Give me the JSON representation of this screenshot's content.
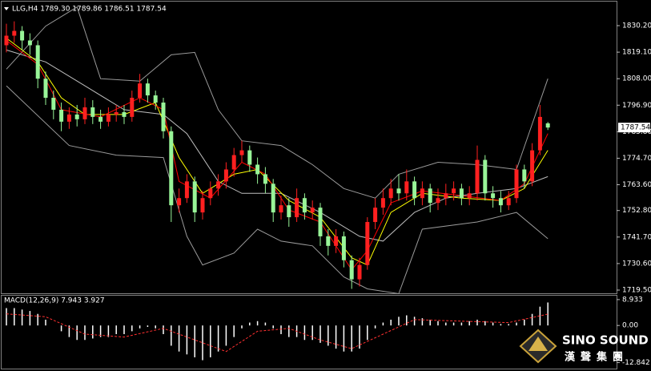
{
  "chart_data": [
    {
      "type": "candlestick",
      "title": "LLG,H4 1789.30 1789.86 1786.51 1787.54",
      "open": [
        1822,
        1826,
        1828,
        1824,
        1822,
        1808,
        1800,
        1795,
        1790,
        1793,
        1791,
        1796,
        1792,
        1790,
        1793,
        1794,
        1792,
        1800,
        1806,
        1801,
        1798,
        1786,
        1755,
        1758,
        1765,
        1752,
        1758,
        1762,
        1765,
        1770,
        1776,
        1778,
        1772,
        1768,
        1764,
        1752,
        1755,
        1750,
        1758,
        1752,
        1754,
        1742,
        1738,
        1742,
        1732,
        1724,
        1730,
        1748,
        1754,
        1758,
        1762,
        1760,
        1765,
        1758,
        1762,
        1756,
        1758,
        1760,
        1762,
        1758,
        1760,
        1774,
        1760,
        1758,
        1755,
        1758,
        1770,
        1765,
        1778,
        1789.3
      ],
      "high": [
        1831,
        1832,
        1830,
        1827,
        1824,
        1811,
        1803,
        1798,
        1796,
        1797,
        1800,
        1799,
        1795,
        1796,
        1797,
        1797,
        1803,
        1810,
        1808,
        1803,
        1800,
        1788,
        1762,
        1768,
        1767,
        1761,
        1765,
        1768,
        1773,
        1779,
        1782,
        1780,
        1775,
        1771,
        1766,
        1759,
        1758,
        1762,
        1760,
        1757,
        1756,
        1745,
        1745,
        1744,
        1734,
        1733,
        1750,
        1758,
        1762,
        1766,
        1768,
        1770,
        1767,
        1765,
        1764,
        1762,
        1764,
        1765,
        1764,
        1763,
        1780,
        1776,
        1763,
        1761,
        1761,
        1772,
        1772,
        1781,
        1797,
        1789.86
      ],
      "low": [
        1819,
        1823,
        1820,
        1818,
        1804,
        1797,
        1791,
        1786,
        1787,
        1788,
        1789,
        1789,
        1787,
        1788,
        1790,
        1789,
        1790,
        1798,
        1798,
        1795,
        1783,
        1748,
        1752,
        1756,
        1748,
        1749,
        1755,
        1759,
        1762,
        1767,
        1773,
        1769,
        1764,
        1760,
        1748,
        1749,
        1746,
        1748,
        1749,
        1749,
        1738,
        1734,
        1735,
        1729,
        1720,
        1721,
        1728,
        1745,
        1751,
        1755,
        1757,
        1757,
        1755,
        1755,
        1752,
        1753,
        1755,
        1757,
        1755,
        1755,
        1757,
        1757,
        1754,
        1752,
        1753,
        1756,
        1762,
        1763,
        1776,
        1786.51
      ],
      "close": [
        1826,
        1828,
        1824,
        1822,
        1808,
        1800,
        1795,
        1790,
        1793,
        1791,
        1796,
        1792,
        1790,
        1793,
        1794,
        1792,
        1800,
        1806,
        1801,
        1798,
        1786,
        1755,
        1758,
        1765,
        1752,
        1758,
        1762,
        1765,
        1770,
        1776,
        1778,
        1772,
        1768,
        1764,
        1752,
        1755,
        1750,
        1758,
        1752,
        1754,
        1742,
        1738,
        1742,
        1732,
        1724,
        1730,
        1748,
        1754,
        1758,
        1762,
        1760,
        1765,
        1758,
        1762,
        1756,
        1758,
        1760,
        1762,
        1758,
        1760,
        1774,
        1760,
        1758,
        1755,
        1758,
        1770,
        1765,
        1778,
        1792,
        1787.54
      ],
      "up_color": "#ff2020",
      "down_color": "#98f598",
      "ylim": [
        1717.82,
        1839.26
      ],
      "yticks": [
        {
          "value": 1830.2,
          "label": "1830.20"
        },
        {
          "value": 1819.1,
          "label": "1819.10"
        },
        {
          "value": 1808,
          "label": "1808.00"
        },
        {
          "value": 1796.9,
          "label": "1796.90"
        },
        {
          "value": 1785.8,
          "label": "1785.80"
        },
        {
          "value": 1774.7,
          "label": "1774.70"
        },
        {
          "value": 1763.6,
          "label": "1763.60"
        },
        {
          "value": 1752.8,
          "label": "1752.80"
        },
        {
          "value": 1741.7,
          "label": "1741.70"
        },
        {
          "value": 1730.6,
          "label": "1730.60"
        },
        {
          "value": 1719.5,
          "label": "1719.50"
        }
      ],
      "last_price": 1787.54,
      "lines": [
        {
          "color": "#9a9a9a",
          "x": [
            0,
            5,
            9,
            12,
            17,
            21,
            24,
            27,
            30,
            35,
            39,
            43,
            47,
            50,
            55,
            60,
            65,
            69
          ],
          "values": [
            1812,
            1830,
            1838,
            1808,
            1807,
            1818,
            1819,
            1795,
            1782,
            1780,
            1772,
            1762,
            1758,
            1768,
            1773,
            1772,
            1770,
            1808
          ]
        },
        {
          "color": "#9a9a9a",
          "x": [
            0,
            8,
            14,
            20,
            23,
            25,
            29,
            32,
            35,
            39,
            43,
            46,
            50,
            53,
            60,
            65,
            69
          ],
          "values": [
            1805,
            1780,
            1776,
            1775,
            1742,
            1730,
            1735,
            1745,
            1740,
            1738,
            1725,
            1720,
            1718,
            1745,
            1748,
            1752,
            1741
          ]
        },
        {
          "color": "#bdbdbd",
          "x": [
            0,
            5,
            10,
            15,
            20,
            23,
            27,
            30,
            35,
            40,
            45,
            48,
            52,
            56,
            60,
            65,
            69
          ],
          "values": [
            1820,
            1815,
            1805,
            1795,
            1793,
            1785,
            1765,
            1760,
            1760,
            1752,
            1742,
            1740,
            1752,
            1758,
            1760,
            1762,
            1767
          ]
        },
        {
          "color": "#ffff00",
          "x": [
            0,
            4,
            7,
            10,
            15,
            19,
            22,
            25,
            29,
            32,
            36,
            40,
            44,
            46,
            49,
            53,
            58,
            63,
            66,
            69
          ],
          "values": [
            1825,
            1815,
            1800,
            1793,
            1793,
            1798,
            1775,
            1760,
            1768,
            1770,
            1757,
            1750,
            1733,
            1730,
            1752,
            1760,
            1758,
            1757,
            1762,
            1778
          ]
        },
        {
          "color": "#ff0000",
          "x": [
            0,
            4,
            7,
            12,
            17,
            20,
            22,
            26,
            30,
            33,
            36,
            40,
            44,
            46,
            49,
            53,
            58,
            63,
            66,
            69
          ],
          "values": [
            1824,
            1814,
            1795,
            1792,
            1800,
            1795,
            1765,
            1758,
            1773,
            1768,
            1753,
            1748,
            1728,
            1736,
            1756,
            1761,
            1759,
            1757,
            1764,
            1785
          ]
        }
      ]
    },
    {
      "type": "bar",
      "title": "MACD(12,26,9) 7.943 3.927",
      "values": [
        6,
        6,
        5.5,
        5,
        4,
        2,
        0,
        -2,
        -4,
        -5,
        -5,
        -4.5,
        -4,
        -4,
        -3,
        -3,
        -2,
        -1,
        -0.5,
        -1,
        -3,
        -7,
        -9,
        -10,
        -11,
        -12,
        -11,
        -9,
        -7,
        -4,
        -1,
        1,
        1.5,
        1,
        -1,
        -3,
        -4,
        -4,
        -5,
        -5,
        -6,
        -7,
        -8,
        -9,
        -9,
        -8,
        -5,
        -1,
        1,
        2,
        3,
        3.5,
        3,
        2.5,
        2,
        1.5,
        1,
        1,
        1,
        1.5,
        2,
        1.5,
        1,
        0.5,
        0.5,
        1,
        2,
        4,
        6.5,
        7.943
      ],
      "color": "#ffffff",
      "ylim": [
        -14.9,
        10.29
      ],
      "yticks": [
        8.933,
        {
          "value": 0,
          "label": "0.00"
        },
        -12.842
      ],
      "signal": {
        "color": "#ff3030",
        "x": [
          0,
          5,
          10,
          15,
          20,
          25,
          28,
          32,
          36,
          40,
          44,
          48,
          52,
          58,
          64,
          69
        ],
        "values": [
          4,
          3,
          -3,
          -4,
          -1,
          -6,
          -9,
          -2,
          -1,
          -5,
          -8,
          -3,
          2,
          1.5,
          1,
          3.927
        ]
      }
    }
  ],
  "logo": {
    "name": "SINO SOUND",
    "subtitle": "漢聲集團"
  }
}
